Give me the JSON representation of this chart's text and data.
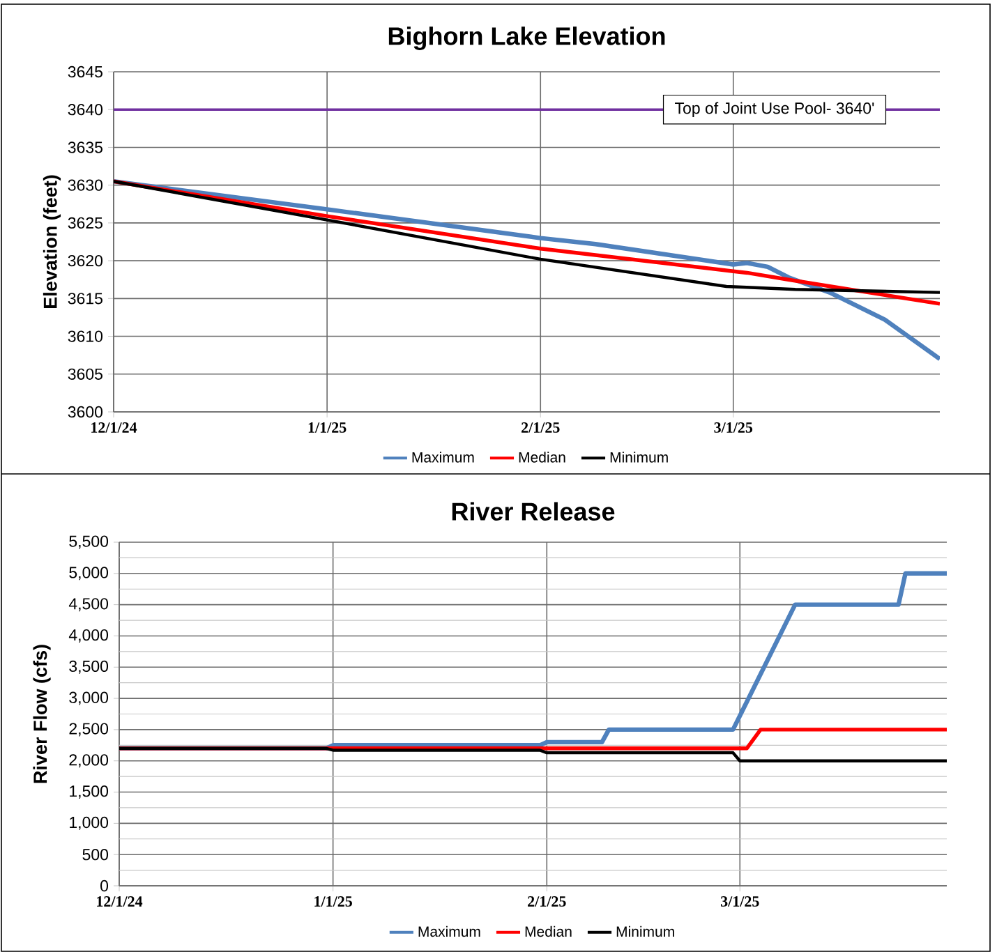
{
  "chart_data": [
    {
      "type": "line",
      "title": "Bighorn Lake Elevation",
      "ylabel": "Elevation (feet)",
      "xlim": [
        "2024-12-01",
        "2025-03-31"
      ],
      "xticks": [
        {
          "value": "2024-12-01",
          "label": "12/1/24"
        },
        {
          "value": "2025-01-01",
          "label": "1/1/25"
        },
        {
          "value": "2025-02-01",
          "label": "2/1/25"
        },
        {
          "value": "2025-03-01",
          "label": "3/1/25"
        }
      ],
      "ylim": [
        3600,
        3645
      ],
      "yticks": [
        3600,
        3605,
        3610,
        3615,
        3620,
        3625,
        3630,
        3635,
        3640,
        3645
      ],
      "grid": true,
      "legend": "bottom",
      "ref_lines": [
        {
          "axis": "y",
          "value": 3640,
          "label": "Top of Joint Use Pool- 3640'",
          "color": "#7030a0"
        }
      ],
      "series": [
        {
          "name": "Maximum",
          "color": "#4f81bd",
          "x": [
            "2024-12-01",
            "2025-01-01",
            "2025-02-01",
            "2025-02-09",
            "2025-03-01",
            "2025-03-03",
            "2025-03-06",
            "2025-03-09",
            "2025-03-15",
            "2025-03-23",
            "2025-03-31"
          ],
          "values": [
            3630.5,
            3626.8,
            3623.0,
            3622.2,
            3619.5,
            3619.7,
            3619.2,
            3617.8,
            3615.8,
            3612.2,
            3607.0
          ]
        },
        {
          "name": "Median",
          "color": "#ff0000",
          "x": [
            "2024-12-01",
            "2025-01-01",
            "2025-02-01",
            "2025-03-01",
            "2025-03-03",
            "2025-03-09",
            "2025-03-31"
          ],
          "values": [
            3630.5,
            3625.9,
            3621.6,
            3618.6,
            3618.4,
            3617.5,
            3614.3
          ]
        },
        {
          "name": "Minimum",
          "color": "#000000",
          "x": [
            "2024-12-01",
            "2025-01-01",
            "2025-02-01",
            "2025-02-28",
            "2025-03-10",
            "2025-03-31"
          ],
          "values": [
            3630.5,
            3625.4,
            3620.2,
            3616.6,
            3616.2,
            3615.8
          ]
        }
      ]
    },
    {
      "type": "line",
      "title": "River Release",
      "ylabel": "River Flow (cfs)",
      "xlim": [
        "2024-12-01",
        "2025-03-31"
      ],
      "xticks": [
        {
          "value": "2024-12-01",
          "label": "12/1/24"
        },
        {
          "value": "2025-01-01",
          "label": "1/1/25"
        },
        {
          "value": "2025-02-01",
          "label": "2/1/25"
        },
        {
          "value": "2025-03-01",
          "label": "3/1/25"
        }
      ],
      "ylim": [
        0,
        5500
      ],
      "yticks": [
        {
          "value": 0,
          "label": "0"
        },
        {
          "value": 250,
          "label": null
        },
        {
          "value": 500,
          "label": "500"
        },
        {
          "value": 750,
          "label": null
        },
        {
          "value": 1000,
          "label": "1,000"
        },
        {
          "value": 1250,
          "label": null
        },
        {
          "value": 1500,
          "label": "1,500"
        },
        {
          "value": 1750,
          "label": null
        },
        {
          "value": 2000,
          "label": "2,000"
        },
        {
          "value": 2250,
          "label": null
        },
        {
          "value": 2500,
          "label": "2,500"
        },
        {
          "value": 2750,
          "label": null
        },
        {
          "value": 3000,
          "label": "3,000"
        },
        {
          "value": 3250,
          "label": null
        },
        {
          "value": 3500,
          "label": "3,500"
        },
        {
          "value": 3750,
          "label": null
        },
        {
          "value": 4000,
          "label": "4,000"
        },
        {
          "value": 4250,
          "label": null
        },
        {
          "value": 4500,
          "label": "4,500"
        },
        {
          "value": 4750,
          "label": null
        },
        {
          "value": 5000,
          "label": "5,000"
        },
        {
          "value": 5250,
          "label": null
        },
        {
          "value": 5500,
          "label": "5,500"
        }
      ],
      "grid": true,
      "legend": "bottom",
      "series": [
        {
          "name": "Maximum",
          "color": "#4f81bd",
          "x": [
            "2024-12-01",
            "2024-12-31",
            "2025-01-01",
            "2025-01-31",
            "2025-02-01",
            "2025-02-09",
            "2025-02-10",
            "2025-02-28",
            "2025-03-09",
            "2025-03-24",
            "2025-03-25",
            "2025-03-31"
          ],
          "values": [
            2200,
            2200,
            2250,
            2250,
            2300,
            2300,
            2500,
            2500,
            4500,
            4500,
            5000,
            5000
          ]
        },
        {
          "name": "Median",
          "color": "#ff0000",
          "x": [
            "2024-12-01",
            "2025-03-02",
            "2025-03-04",
            "2025-03-31"
          ],
          "values": [
            2200,
            2200,
            2500,
            2500
          ]
        },
        {
          "name": "Minimum",
          "color": "#000000",
          "x": [
            "2024-12-01",
            "2024-12-31",
            "2025-01-01",
            "2025-01-31",
            "2025-02-01",
            "2025-02-28",
            "2025-03-01",
            "2025-03-31"
          ],
          "values": [
            2200,
            2200,
            2170,
            2170,
            2130,
            2130,
            2000,
            2000
          ]
        }
      ]
    }
  ]
}
